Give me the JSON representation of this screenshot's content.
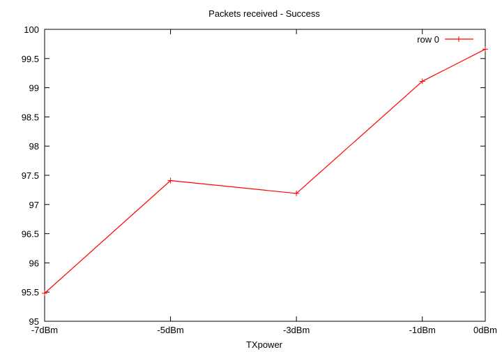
{
  "chart_data": {
    "type": "line",
    "title": "Packets received - Success",
    "xlabel": "TXpower",
    "ylabel": "",
    "categories": [
      "-7dBm",
      "-5dBm",
      "-3dBm",
      "-1dBm",
      "0dBm"
    ],
    "x": [
      -7,
      -5,
      -3,
      -1,
      0
    ],
    "series": [
      {
        "name": "row 0",
        "values": [
          95.48,
          97.41,
          97.19,
          99.11,
          99.66
        ],
        "color": "#ff0000"
      }
    ],
    "xlim": [
      -7,
      0
    ],
    "ylim": [
      95,
      100
    ],
    "yticks": [
      95,
      95.5,
      96,
      96.5,
      97,
      97.5,
      98,
      98.5,
      99,
      99.5,
      100
    ],
    "ytick_labels": [
      "95",
      "95.5",
      "96",
      "96.5",
      "97",
      "97.5",
      "98",
      "98.5",
      "99",
      "99.5",
      "100"
    ],
    "grid": false,
    "legend_position": "top-right"
  }
}
